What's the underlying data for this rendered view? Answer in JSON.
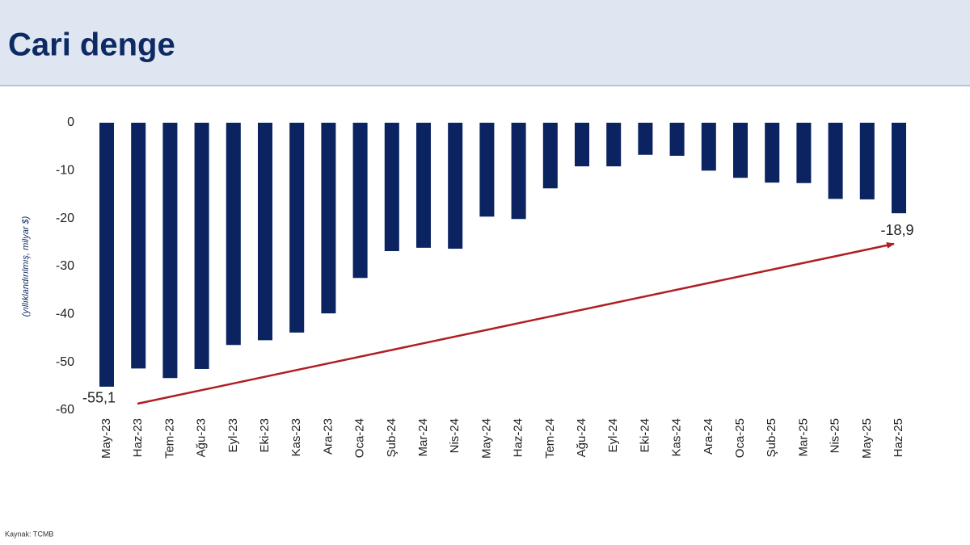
{
  "chart_data": {
    "type": "bar",
    "title": "Cari denge",
    "y_axis_label": "(yıllıklandırılmış, milyar $)",
    "source": "Kaynak: TCMB",
    "categories": [
      "May-23",
      "Haz-23",
      "Tem-23",
      "Ağu-23",
      "Eyl-23",
      "Eki-23",
      "Kas-23",
      "Ara-23",
      "Oca-24",
      "Şub-24",
      "Mar-24",
      "Nis-24",
      "May-24",
      "Haz-24",
      "Tem-24",
      "Ağu-24",
      "Eyl-24",
      "Eki-24",
      "Kas-24",
      "Ara-24",
      "Oca-25",
      "Şub-25",
      "Mar-25",
      "Nis-25",
      "May-25",
      "Haz-25"
    ],
    "values": [
      -55.1,
      -51.3,
      -53.3,
      -51.4,
      -46.4,
      -45.4,
      -43.8,
      -39.8,
      -32.4,
      -26.8,
      -26.1,
      -26.3,
      -19.6,
      -20.1,
      -13.7,
      -9.1,
      -9.1,
      -6.7,
      -6.9,
      -10.0,
      -11.5,
      -12.5,
      -12.6,
      -15.9,
      -16.0,
      -18.9
    ],
    "value_labels": [
      "-55,1",
      null,
      null,
      null,
      null,
      null,
      null,
      null,
      null,
      null,
      null,
      null,
      null,
      null,
      null,
      null,
      null,
      null,
      null,
      null,
      null,
      null,
      null,
      null,
      null,
      "-18,9"
    ],
    "color": "#0b2461",
    "ylim": [
      -60,
      0
    ],
    "yticks": [
      0,
      -10,
      -20,
      -30,
      -40,
      -50,
      -60
    ],
    "grid": false
  }
}
